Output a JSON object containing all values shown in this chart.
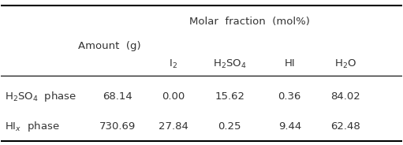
{
  "top_header1": "Molar  fraction  (mol%)",
  "col_header_amount": "Amount  (g)",
  "col_headers_molar": [
    "I₂",
    "H₂SO₄",
    "HI",
    "H₂O"
  ],
  "row_labels": [
    "H₂SO₄  phase",
    "HIₓ  phase"
  ],
  "row_data": [
    [
      "68.14",
      "0.00",
      "15.62",
      "0.36",
      "84.02"
    ],
    [
      "730.69",
      "27.84",
      "0.25",
      "9.44",
      "62.48"
    ]
  ],
  "text_color": "#333333",
  "font_size": 9.5
}
